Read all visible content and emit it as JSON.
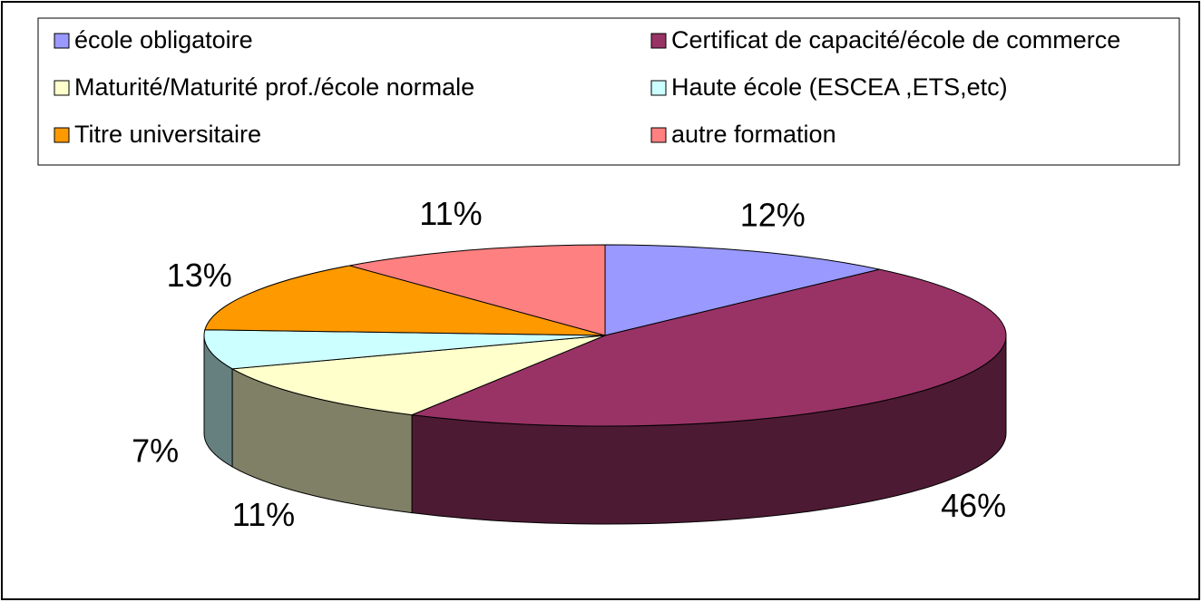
{
  "chart_data": {
    "type": "pie",
    "categories": [
      "école obligatoire",
      "Certificat de capacité/école de commerce",
      "Maturité/Maturité prof./école normale",
      "Haute école (ESCEA ,ETS,etc)",
      "Titre universitaire",
      "autre formation"
    ],
    "values": [
      12,
      46,
      11,
      7,
      13,
      11
    ],
    "value_labels": [
      "12%",
      "46%",
      "11%",
      "7%",
      "13%",
      "11%"
    ],
    "colors": [
      "#9999ff",
      "#993366",
      "#ffffcc",
      "#ccffff",
      "#ff9900",
      "#ff8080"
    ],
    "legend": "top"
  }
}
